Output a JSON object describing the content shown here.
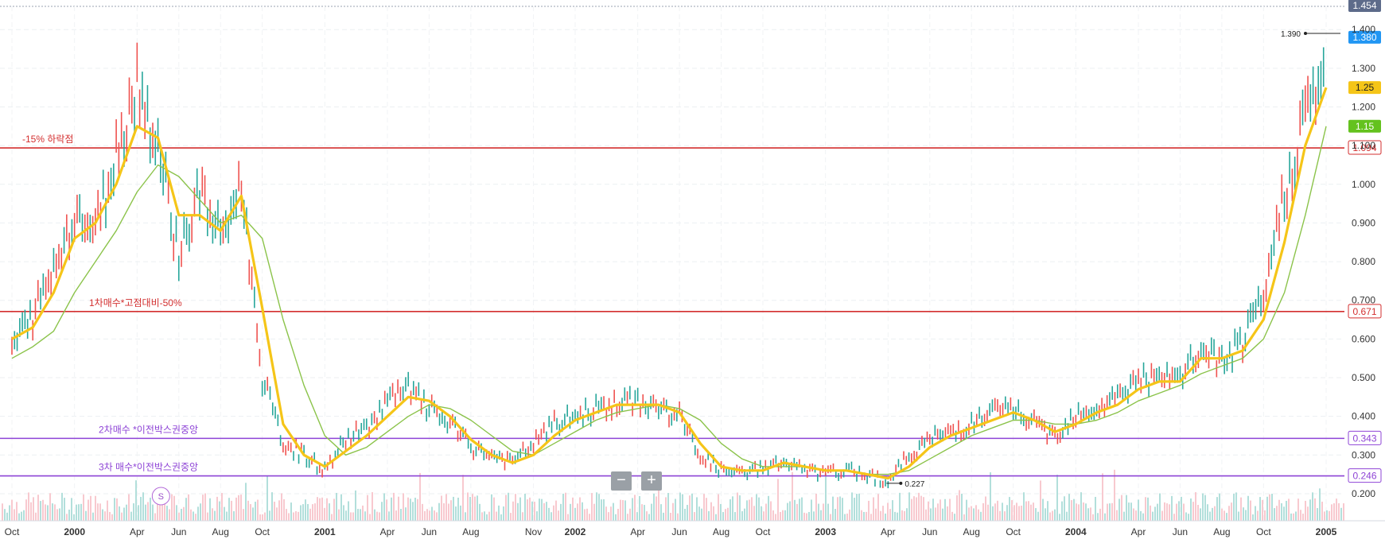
{
  "chart_data": {
    "type": "line",
    "title": "",
    "xlabel": "",
    "ylabel": "",
    "ylim": [
      0.13,
      1.46
    ],
    "grid": true,
    "x_ticks": [
      "Oct",
      "2000",
      "Apr",
      "Jun",
      "Aug",
      "Oct",
      "2001",
      "Apr",
      "Jun",
      "Aug",
      "Nov",
      "2002",
      "Apr",
      "Jun",
      "Aug",
      "Oct",
      "2003",
      "Apr",
      "Jun",
      "Aug",
      "Oct",
      "2004",
      "Apr",
      "Jun",
      "Aug",
      "Oct",
      "2005"
    ],
    "y_ticks": [
      "0.200",
      "0.300",
      "0.400",
      "0.500",
      "0.600",
      "0.700",
      "0.800",
      "0.900",
      "1.000",
      "1.100",
      "1.200",
      "1.300",
      "1.400"
    ],
    "y_tick_values": [
      0.2,
      0.3,
      0.4,
      0.5,
      0.6,
      0.7,
      0.8,
      0.9,
      1.0,
      1.1,
      1.2,
      1.3,
      1.4
    ],
    "x_dates": [
      "1999-10",
      "1999-11",
      "1999-12",
      "2000-01",
      "2000-02",
      "2000-03",
      "2000-04",
      "2000-05",
      "2000-06",
      "2000-07",
      "2000-08",
      "2000-09",
      "2000-10",
      "2000-11",
      "2000-12",
      "2001-01",
      "2001-02",
      "2001-03",
      "2001-04",
      "2001-05",
      "2001-06",
      "2001-07",
      "2001-08",
      "2001-09",
      "2001-10",
      "2001-11",
      "2001-12",
      "2002-01",
      "2002-02",
      "2002-03",
      "2002-04",
      "2002-05",
      "2002-06",
      "2002-07",
      "2002-08",
      "2002-09",
      "2002-10",
      "2002-11",
      "2002-12",
      "2003-01",
      "2003-02",
      "2003-03",
      "2003-04",
      "2003-05",
      "2003-06",
      "2003-07",
      "2003-08",
      "2003-09",
      "2003-10",
      "2003-11",
      "2003-12",
      "2004-01",
      "2004-02",
      "2004-03",
      "2004-04",
      "2004-05",
      "2004-06",
      "2004-07",
      "2004-08",
      "2004-09",
      "2004-10",
      "2004-11",
      "2004-12",
      "2005-01"
    ],
    "series": [
      {
        "name": "",
        "color": "#26a69a",
        "values": [
          0.58,
          0.66,
          0.78,
          0.93,
          0.88,
          1.08,
          1.27,
          1.1,
          0.82,
          0.98,
          0.86,
          1.0,
          0.5,
          0.33,
          0.3,
          0.26,
          0.34,
          0.37,
          0.44,
          0.47,
          0.42,
          0.38,
          0.32,
          0.3,
          0.28,
          0.33,
          0.38,
          0.4,
          0.42,
          0.43,
          0.44,
          0.42,
          0.4,
          0.3,
          0.26,
          0.25,
          0.27,
          0.28,
          0.26,
          0.25,
          0.26,
          0.25,
          0.23,
          0.3,
          0.34,
          0.36,
          0.38,
          0.41,
          0.42,
          0.38,
          0.35,
          0.41,
          0.42,
          0.45,
          0.5,
          0.49,
          0.5,
          0.57,
          0.54,
          0.59,
          0.7,
          0.98,
          1.18,
          1.29
        ]
      },
      {
        "name": "",
        "color": "#f5c518",
        "values": [
          0.6,
          0.63,
          0.72,
          0.86,
          0.9,
          1.0,
          1.15,
          1.12,
          0.92,
          0.92,
          0.88,
          0.97,
          0.68,
          0.38,
          0.3,
          0.27,
          0.31,
          0.35,
          0.4,
          0.45,
          0.44,
          0.4,
          0.34,
          0.3,
          0.28,
          0.3,
          0.35,
          0.39,
          0.41,
          0.43,
          0.43,
          0.43,
          0.41,
          0.33,
          0.27,
          0.26,
          0.26,
          0.28,
          0.27,
          0.26,
          0.26,
          0.25,
          0.24,
          0.27,
          0.32,
          0.35,
          0.37,
          0.39,
          0.41,
          0.39,
          0.36,
          0.38,
          0.41,
          0.43,
          0.47,
          0.49,
          0.49,
          0.55,
          0.55,
          0.57,
          0.65,
          0.85,
          1.1,
          1.25
        ]
      },
      {
        "name": "",
        "color": "#8bc34a",
        "values": [
          0.55,
          0.58,
          0.62,
          0.72,
          0.8,
          0.88,
          0.98,
          1.05,
          1.02,
          0.96,
          0.9,
          0.92,
          0.86,
          0.65,
          0.48,
          0.35,
          0.3,
          0.32,
          0.36,
          0.4,
          0.43,
          0.42,
          0.39,
          0.35,
          0.31,
          0.3,
          0.33,
          0.36,
          0.39,
          0.41,
          0.42,
          0.43,
          0.42,
          0.39,
          0.33,
          0.29,
          0.27,
          0.27,
          0.27,
          0.26,
          0.26,
          0.25,
          0.25,
          0.26,
          0.29,
          0.32,
          0.35,
          0.37,
          0.39,
          0.39,
          0.38,
          0.38,
          0.39,
          0.41,
          0.44,
          0.46,
          0.48,
          0.51,
          0.53,
          0.55,
          0.6,
          0.72,
          0.92,
          1.15
        ]
      }
    ],
    "horizontal_lines": [
      {
        "value": 1.094,
        "label": "-15% 하락점",
        "price_label": "1.094",
        "color": "#d32f2f"
      },
      {
        "value": 0.671,
        "label": "1차매수*고점대비-50%",
        "price_label": "0.671",
        "color": "#d32f2f"
      },
      {
        "value": 0.343,
        "label": "2차매수 *이전박스권중앙",
        "price_label": "0.343",
        "color": "#8e44d6"
      },
      {
        "value": 0.246,
        "label": "3차 매수*이전박스권중앙",
        "price_label": "0.246",
        "color": "#8e44d6"
      }
    ],
    "price_badges": [
      {
        "value": 1.454,
        "label": "1.454",
        "color": "#5d6b8a"
      },
      {
        "value": 1.38,
        "label": "1.380",
        "color": "#2196f3"
      },
      {
        "value": 1.25,
        "label": "1.25",
        "color": "#f5c518"
      },
      {
        "value": 1.15,
        "label": "1.15",
        "color": "#64c21e"
      }
    ],
    "annotations": [
      {
        "label": "1.390",
        "value": 1.39,
        "date": "2005-01"
      },
      {
        "label": "0.227",
        "value": 0.227,
        "date": "2003-04"
      }
    ],
    "markers": [
      {
        "label": "S",
        "date": "2000-04"
      }
    ]
  },
  "controls": {
    "zoom_out": "−",
    "zoom_in": "+"
  }
}
